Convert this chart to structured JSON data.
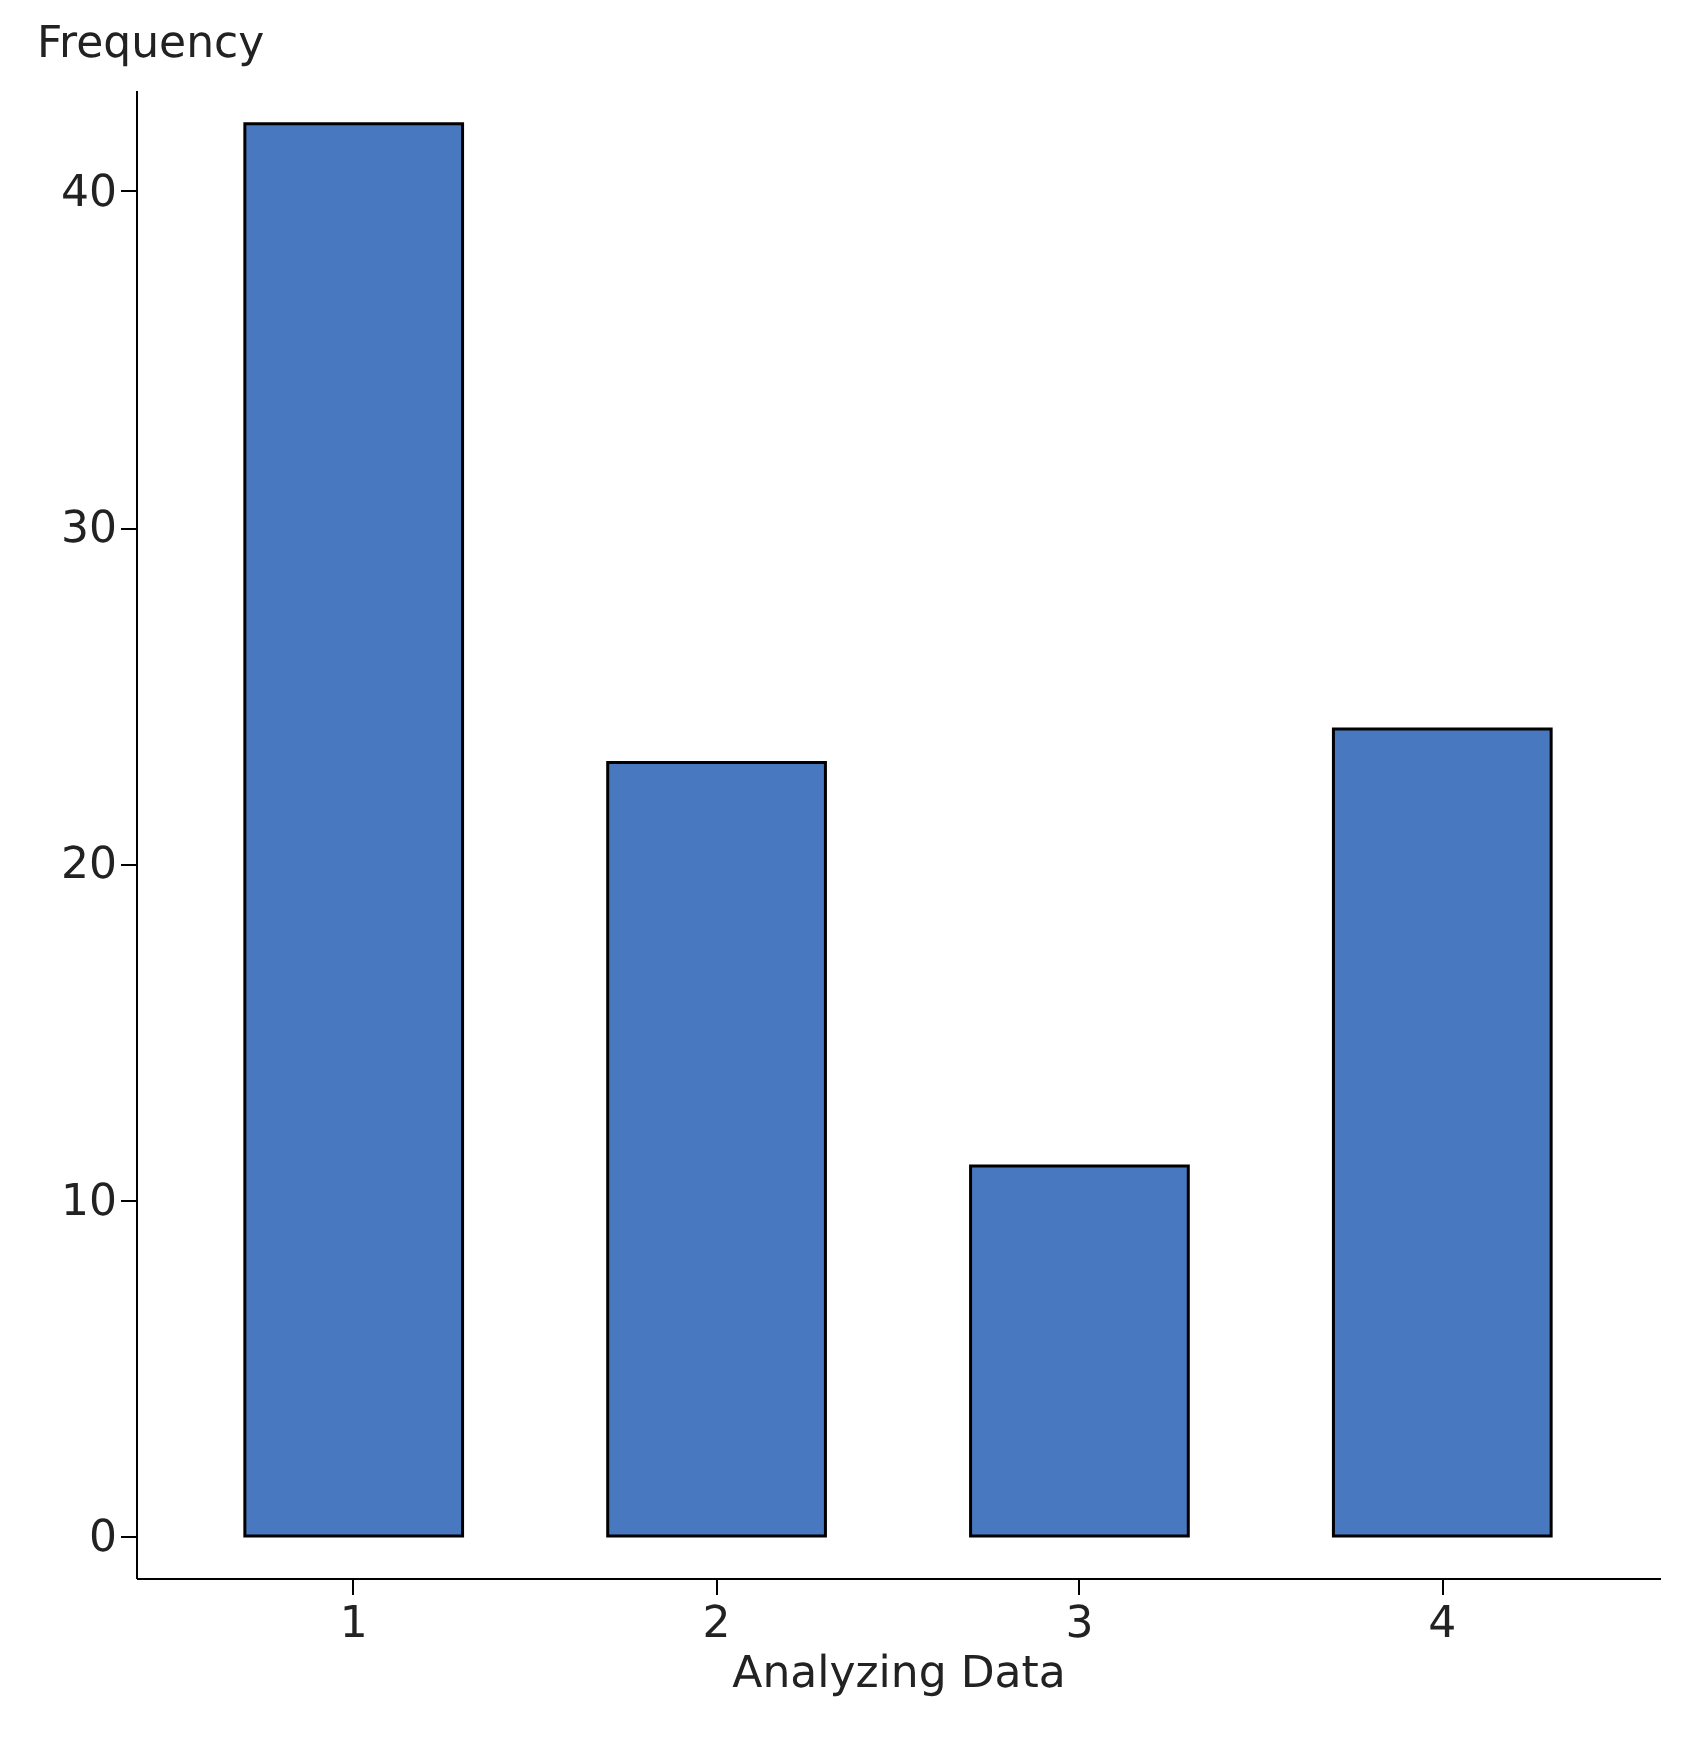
{
  "chart_data": {
    "type": "bar",
    "xlabel": "Analyzing Data",
    "ylabel": "Frequency",
    "categories": [
      "1",
      "2",
      "3",
      "4"
    ],
    "values": [
      42,
      23,
      11,
      24
    ],
    "color": "#4878c0",
    "ylim": [
      -1.25,
      43
    ],
    "yticks": [
      0,
      10,
      20,
      30,
      40
    ],
    "grid": false
  }
}
